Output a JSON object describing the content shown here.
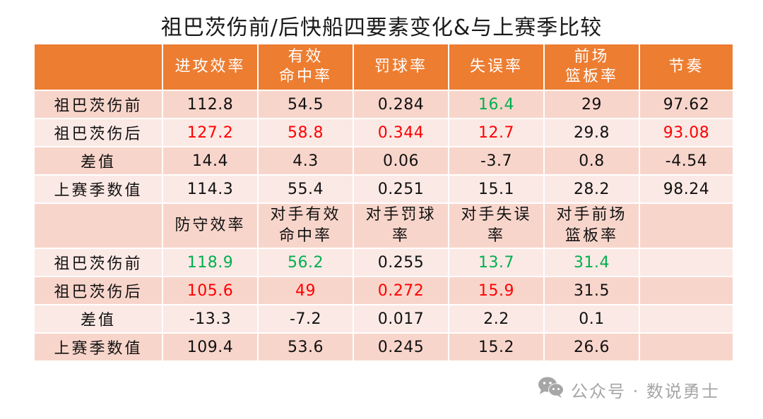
{
  "title": "祖巴茨伤前/后快船四要素变化&与上赛季比较",
  "offense": {
    "headers": [
      "",
      "进攻效率",
      "有效\n命中率",
      "罚球率",
      "失误率",
      "前场\n篮板率",
      "节奏"
    ],
    "header_lines": [
      [
        ""
      ],
      [
        "进攻效率"
      ],
      [
        "有效",
        "命中率"
      ],
      [
        "罚球率"
      ],
      [
        "失误率"
      ],
      [
        "前场",
        "篮板率"
      ],
      [
        "节奏"
      ]
    ],
    "rows": [
      {
        "label": "祖巴茨伤前",
        "values": [
          "112.8",
          "54.5",
          "0.284",
          "16.4",
          "29",
          "97.62"
        ],
        "colors": [
          "",
          "",
          "",
          "green",
          "",
          ""
        ]
      },
      {
        "label": "祖巴茨伤后",
        "values": [
          "127.2",
          "58.8",
          "0.344",
          "12.7",
          "29.8",
          "93.08"
        ],
        "colors": [
          "red",
          "red",
          "red",
          "red",
          "",
          "red"
        ]
      },
      {
        "label": "差值",
        "values": [
          "14.4",
          "4.3",
          "0.06",
          "-3.7",
          "0.8",
          "-4.54"
        ],
        "colors": [
          "",
          "",
          "",
          "",
          "",
          ""
        ]
      },
      {
        "label": "上赛季数值",
        "values": [
          "114.3",
          "55.4",
          "0.251",
          "15.1",
          "28.2",
          "98.24"
        ],
        "colors": [
          "",
          "",
          "",
          "",
          "",
          ""
        ]
      }
    ]
  },
  "defense": {
    "header_lines": [
      [
        ""
      ],
      [
        "防守效率"
      ],
      [
        "对手有效",
        "命中率"
      ],
      [
        "对手罚球",
        "率"
      ],
      [
        "对手失误",
        "率"
      ],
      [
        "对手前场",
        "篮板率"
      ],
      [
        ""
      ]
    ],
    "rows": [
      {
        "label": "祖巴茨伤前",
        "values": [
          "118.9",
          "56.2",
          "0.255",
          "13.7",
          "31.4",
          ""
        ],
        "colors": [
          "green",
          "green",
          "",
          "green",
          "green",
          ""
        ]
      },
      {
        "label": "祖巴茨伤后",
        "values": [
          "105.6",
          "49",
          "0.272",
          "15.9",
          "31.5",
          ""
        ],
        "colors": [
          "red",
          "red",
          "red",
          "red",
          "",
          ""
        ]
      },
      {
        "label": "差值",
        "values": [
          "-13.3",
          "-7.2",
          "0.017",
          "2.2",
          "0.1",
          ""
        ],
        "colors": [
          "",
          "",
          "",
          "",
          "",
          ""
        ]
      },
      {
        "label": "上赛季数值",
        "values": [
          "109.4",
          "53.6",
          "0.245",
          "15.2",
          "26.6",
          ""
        ],
        "colors": [
          "",
          "",
          "",
          "",
          "",
          ""
        ]
      }
    ]
  },
  "colors": {
    "header_bg": "#ED7D31",
    "row_dark": "#F8D5CB",
    "row_light": "#FBE9E5",
    "better": "#00B050",
    "worse": "#FF0000"
  },
  "watermark": {
    "icon": "wechat-icon",
    "text": "公众号 · 数说勇士"
  }
}
